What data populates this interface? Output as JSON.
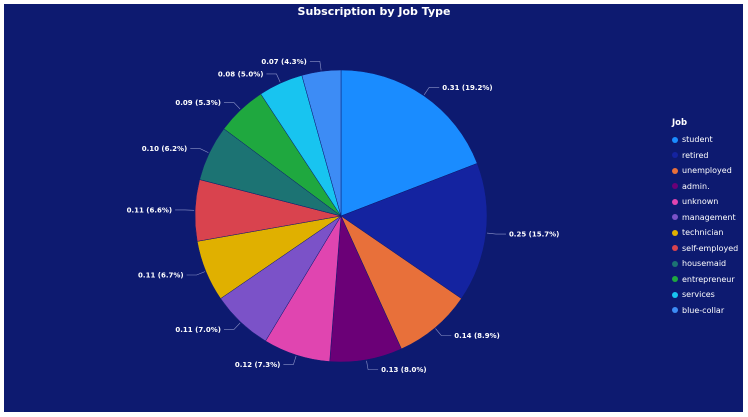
{
  "chart_data": {
    "type": "pie",
    "title": "Subscription by Job Type",
    "legend_title": "Job",
    "legend_position": "right",
    "slices": [
      {
        "label": "student",
        "value": 0.31,
        "percent": "19.2%",
        "text": "0.31 (19.2%)",
        "color": "#1a8cff"
      },
      {
        "label": "retired",
        "value": 0.25,
        "percent": "15.7%",
        "text": "0.25 (15.7%)",
        "color": "#1423a0"
      },
      {
        "label": "unemployed",
        "value": 0.14,
        "percent": "8.9%",
        "text": "0.14 (8.9%)",
        "color": "#e8703a"
      },
      {
        "label": "admin.",
        "value": 0.13,
        "percent": "8.0%",
        "text": "0.13 (8.0%)",
        "color": "#6b0077"
      },
      {
        "label": "unknown",
        "value": 0.12,
        "percent": "7.3%",
        "text": "0.12 (7.3%)",
        "color": "#e045b0"
      },
      {
        "label": "management",
        "value": 0.11,
        "percent": "7.0%",
        "text": "0.11 (7.0%)",
        "color": "#7b52c8"
      },
      {
        "label": "technician",
        "value": 0.11,
        "percent": "6.7%",
        "text": "0.11 (6.7%)",
        "color": "#e0b000"
      },
      {
        "label": "self-employed",
        "value": 0.11,
        "percent": "6.6%",
        "text": "0.11 (6.6%)",
        "color": "#d9434e"
      },
      {
        "label": "housemaid",
        "value": 0.1,
        "percent": "6.2%",
        "text": "0.10 (6.2%)",
        "color": "#1c7373"
      },
      {
        "label": "entrepreneur",
        "value": 0.09,
        "percent": "5.3%",
        "text": "0.09 (5.3%)",
        "color": "#1fa83f"
      },
      {
        "label": "services",
        "value": 0.08,
        "percent": "5.0%",
        "text": "0.08 (5.0%)",
        "color": "#18c4f0"
      },
      {
        "label": "blue-collar",
        "value": 0.07,
        "percent": "4.3%",
        "text": "0.07 (4.3%)",
        "color": "#3d8cf5"
      }
    ]
  }
}
